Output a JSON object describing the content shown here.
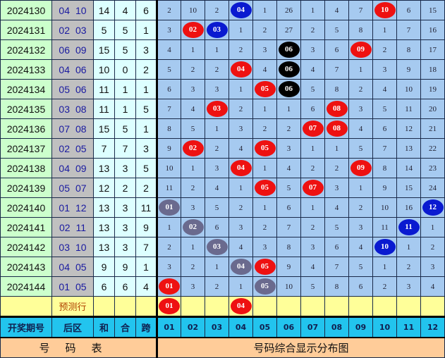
{
  "colors": {
    "red": "#ee1111",
    "blue": "#0a1ad0",
    "black": "#000000",
    "gray": "#6a6a8e",
    "grid_bg": "#a6caf0",
    "period_bg": "#ccffcc",
    "prediction_bg": "#ffff99",
    "header_bg": "#22c4ee",
    "footer_bg": "#ffcc99"
  },
  "rows": [
    {
      "period": "2024130",
      "back": [
        "04",
        "10"
      ],
      "sum": "14",
      "he": "4",
      "span": "6",
      "cells": [
        "2",
        "10",
        "2",
        {
          "v": "04",
          "c": "blue"
        },
        "1",
        "26",
        "1",
        "4",
        "7",
        {
          "v": "10",
          "c": "red"
        },
        "6",
        "15"
      ]
    },
    {
      "period": "2024131",
      "back": [
        "02",
        "03"
      ],
      "sum": "5",
      "he": "5",
      "span": "1",
      "cells": [
        "3",
        {
          "v": "02",
          "c": "red"
        },
        {
          "v": "03",
          "c": "blue"
        },
        "1",
        "2",
        "27",
        "2",
        "5",
        "8",
        "1",
        "7",
        "16"
      ]
    },
    {
      "period": "2024132",
      "back": [
        "06",
        "09"
      ],
      "sum": "15",
      "he": "5",
      "span": "3",
      "cells": [
        "4",
        "1",
        "1",
        "2",
        "3",
        {
          "v": "06",
          "c": "black"
        },
        "3",
        "6",
        {
          "v": "09",
          "c": "red"
        },
        "2",
        "8",
        "17"
      ]
    },
    {
      "period": "2024133",
      "back": [
        "04",
        "06"
      ],
      "sum": "10",
      "he": "0",
      "span": "2",
      "cells": [
        "5",
        "2",
        "2",
        {
          "v": "04",
          "c": "red"
        },
        "4",
        {
          "v": "06",
          "c": "black"
        },
        "4",
        "7",
        "1",
        "3",
        "9",
        "18"
      ]
    },
    {
      "period": "2024134",
      "back": [
        "05",
        "06"
      ],
      "sum": "11",
      "he": "1",
      "span": "1",
      "cells": [
        "6",
        "3",
        "3",
        "1",
        {
          "v": "05",
          "c": "red"
        },
        {
          "v": "06",
          "c": "black"
        },
        "5",
        "8",
        "2",
        "4",
        "10",
        "19"
      ]
    },
    {
      "period": "2024135",
      "back": [
        "03",
        "08"
      ],
      "sum": "11",
      "he": "1",
      "span": "5",
      "cells": [
        "7",
        "4",
        {
          "v": "03",
          "c": "red"
        },
        "2",
        "1",
        "1",
        "6",
        {
          "v": "08",
          "c": "red"
        },
        "3",
        "5",
        "11",
        "20"
      ]
    },
    {
      "period": "2024136",
      "back": [
        "07",
        "08"
      ],
      "sum": "15",
      "he": "5",
      "span": "1",
      "cells": [
        "8",
        "5",
        "1",
        "3",
        "2",
        "2",
        {
          "v": "07",
          "c": "red"
        },
        {
          "v": "08",
          "c": "red"
        },
        "4",
        "6",
        "12",
        "21"
      ]
    },
    {
      "period": "2024137",
      "back": [
        "02",
        "05"
      ],
      "sum": "7",
      "he": "7",
      "span": "3",
      "cells": [
        "9",
        {
          "v": "02",
          "c": "red"
        },
        "2",
        "4",
        {
          "v": "05",
          "c": "red"
        },
        "3",
        "1",
        "1",
        "5",
        "7",
        "13",
        "22"
      ]
    },
    {
      "period": "2024138",
      "back": [
        "04",
        "09"
      ],
      "sum": "13",
      "he": "3",
      "span": "5",
      "cells": [
        "10",
        "1",
        "3",
        {
          "v": "04",
          "c": "red"
        },
        "1",
        "4",
        "2",
        "2",
        {
          "v": "09",
          "c": "red"
        },
        "8",
        "14",
        "23"
      ]
    },
    {
      "period": "2024139",
      "back": [
        "05",
        "07"
      ],
      "sum": "12",
      "he": "2",
      "span": "2",
      "cells": [
        "11",
        "2",
        "4",
        "1",
        {
          "v": "05",
          "c": "red"
        },
        "5",
        {
          "v": "07",
          "c": "red"
        },
        "3",
        "1",
        "9",
        "15",
        "24"
      ]
    },
    {
      "period": "2024140",
      "back": [
        "01",
        "12"
      ],
      "sum": "13",
      "he": "3",
      "span": "11",
      "cells": [
        {
          "v": "01",
          "c": "gray"
        },
        "3",
        "5",
        "2",
        "1",
        "6",
        "1",
        "4",
        "2",
        "10",
        "16",
        {
          "v": "12",
          "c": "blue"
        }
      ]
    },
    {
      "period": "2024141",
      "back": [
        "02",
        "11"
      ],
      "sum": "13",
      "he": "3",
      "span": "9",
      "cells": [
        "1",
        {
          "v": "02",
          "c": "gray"
        },
        "6",
        "3",
        "2",
        "7",
        "2",
        "5",
        "3",
        "11",
        {
          "v": "11",
          "c": "blue"
        },
        "1"
      ]
    },
    {
      "period": "2024142",
      "back": [
        "03",
        "10"
      ],
      "sum": "13",
      "he": "3",
      "span": "7",
      "cells": [
        "2",
        "1",
        {
          "v": "03",
          "c": "gray"
        },
        "4",
        "3",
        "8",
        "3",
        "6",
        "4",
        {
          "v": "10",
          "c": "blue"
        },
        "1",
        "2"
      ]
    },
    {
      "period": "2024143",
      "back": [
        "04",
        "05"
      ],
      "sum": "9",
      "he": "9",
      "span": "1",
      "cells": [
        "3",
        "2",
        "1",
        {
          "v": "04",
          "c": "gray"
        },
        {
          "v": "05",
          "c": "red"
        },
        "9",
        "4",
        "7",
        "5",
        "1",
        "2",
        "3"
      ]
    },
    {
      "period": "2024144",
      "back": [
        "01",
        "05"
      ],
      "sum": "6",
      "he": "6",
      "span": "4",
      "cells": [
        {
          "v": "01",
          "c": "red"
        },
        "3",
        "2",
        "1",
        {
          "v": "05",
          "c": "gray"
        },
        "10",
        "5",
        "8",
        "6",
        "2",
        "3",
        "4"
      ]
    }
  ],
  "prediction": {
    "label": "预测行",
    "cells": [
      {
        "v": "01",
        "c": "red"
      },
      "",
      "",
      {
        "v": "04",
        "c": "red"
      },
      "",
      "",
      "",
      "",
      "",
      "",
      "",
      ""
    ]
  },
  "header": {
    "period": "开奖期号",
    "back": "后区",
    "sum": "和",
    "he": "合",
    "span": "跨",
    "numbers": [
      "01",
      "02",
      "03",
      "04",
      "05",
      "06",
      "07",
      "08",
      "09",
      "10",
      "11",
      "12"
    ]
  },
  "footer": {
    "left": "号码表",
    "right": "号码综合显示分布图"
  }
}
